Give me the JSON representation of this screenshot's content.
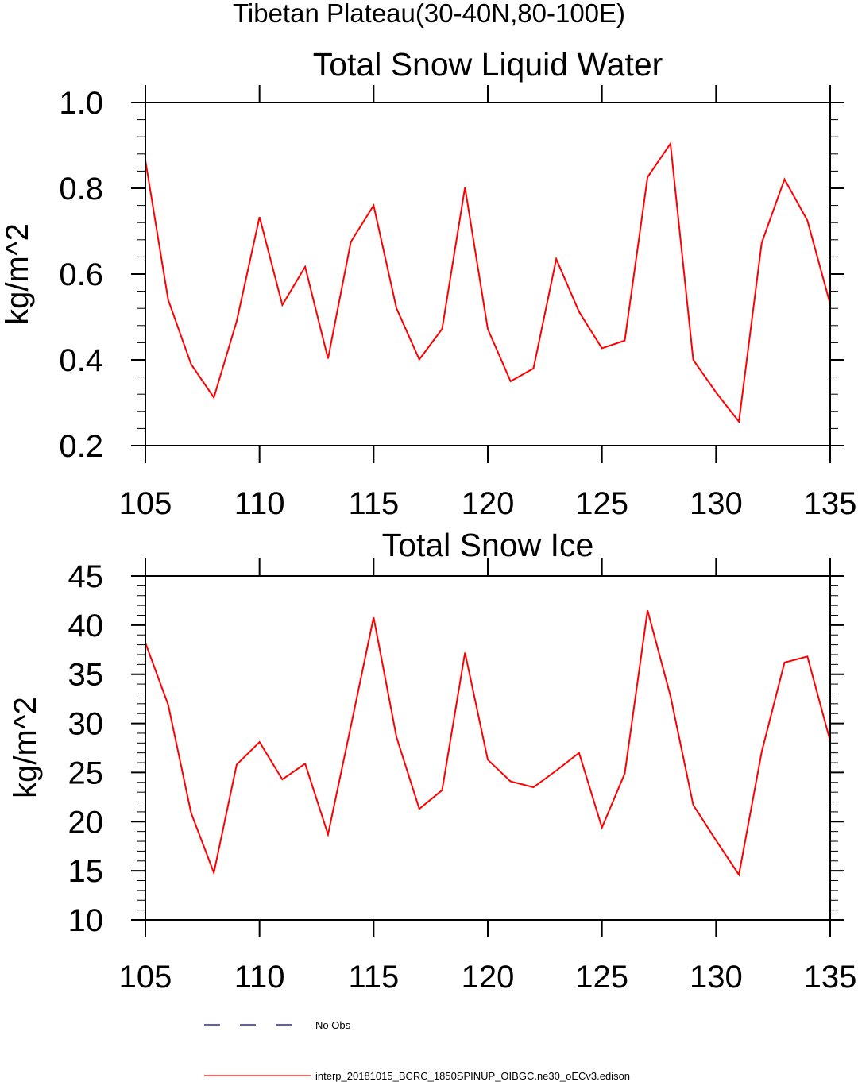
{
  "figure": {
    "suptitle": "Tibetan Plateau(30-40N,80-100E)"
  },
  "chart_data": [
    {
      "type": "line",
      "title": "Total Snow Liquid Water",
      "xlabel": "",
      "ylabel": "kg/m^2",
      "xlim": [
        105,
        135
      ],
      "ylim": [
        0.2,
        1.0
      ],
      "xticks": [
        105,
        110,
        115,
        120,
        125,
        130,
        135
      ],
      "yticks": [
        0.2,
        0.4,
        0.6,
        0.8,
        1.0
      ],
      "ytick_labels": [
        "0.2",
        "0.4",
        "0.6",
        "0.8",
        "1.0"
      ],
      "series": [
        {
          "color": "#ff0000",
          "x": [
            105,
            106,
            107,
            108,
            109,
            110,
            111,
            112,
            113,
            114,
            115,
            116,
            117,
            118,
            119,
            120,
            121,
            122,
            123,
            124,
            125,
            126,
            127,
            128,
            129,
            130,
            131,
            132,
            133,
            134,
            135
          ],
          "values": [
            0.865,
            0.54,
            0.39,
            0.312,
            0.49,
            0.733,
            0.528,
            0.617,
            0.403,
            0.675,
            0.76,
            0.52,
            0.401,
            0.472,
            0.802,
            0.472,
            0.35,
            0.38,
            0.635,
            0.512,
            0.427,
            0.445,
            0.826,
            0.904,
            0.4,
            0.324,
            0.256,
            0.673,
            0.821,
            0.725,
            0.53
          ]
        }
      ]
    },
    {
      "type": "line",
      "title": "Total Snow Ice",
      "xlabel": "",
      "ylabel": "kg/m^2",
      "xlim": [
        105,
        135
      ],
      "ylim": [
        10,
        45
      ],
      "xticks": [
        105,
        110,
        115,
        120,
        125,
        130,
        135
      ],
      "yticks": [
        10,
        15,
        20,
        25,
        30,
        35,
        40,
        45
      ],
      "ytick_labels": [
        "10",
        "15",
        "20",
        "25",
        "30",
        "35",
        "40",
        "45"
      ],
      "series": [
        {
          "color": "#ff0000",
          "x": [
            105,
            106,
            107,
            108,
            109,
            110,
            111,
            112,
            113,
            114,
            115,
            116,
            117,
            118,
            119,
            120,
            121,
            122,
            123,
            124,
            125,
            126,
            127,
            128,
            129,
            130,
            131,
            132,
            133,
            134,
            135
          ],
          "values": [
            38.2,
            31.9,
            20.9,
            14.8,
            25.8,
            28.1,
            24.3,
            25.9,
            18.7,
            29.7,
            40.8,
            28.6,
            21.3,
            23.2,
            37.2,
            26.3,
            24.1,
            23.5,
            25.2,
            27.0,
            19.4,
            24.9,
            41.5,
            32.8,
            21.7,
            18.1,
            14.6,
            27.1,
            36.2,
            36.8,
            28.2
          ]
        }
      ]
    }
  ],
  "legend": {
    "placement": "bottom",
    "items": [
      {
        "label": "No Obs",
        "color": "#00007f",
        "style": "dashed"
      },
      {
        "label": "interp_20181015_BCRC_1850SPINUP_OIBGC.ne30_oECv3.edison",
        "color": "#ff0000",
        "style": "solid"
      }
    ]
  }
}
